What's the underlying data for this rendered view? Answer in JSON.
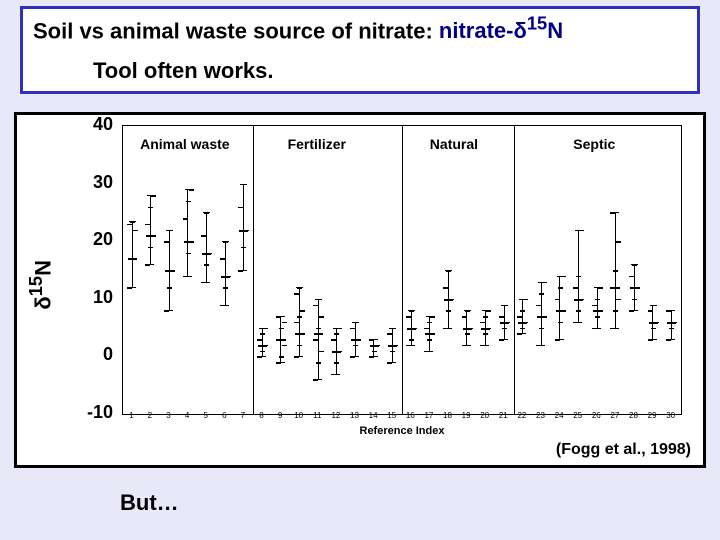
{
  "title": {
    "prefix": "Soil vs animal waste source of nitrate:  ",
    "highlight": "nitrate-δ15N",
    "line2": "Tool often works."
  },
  "chart": {
    "y_axis_label": "δ15N",
    "x_axis_label": "Reference Index",
    "citation": "(Fogg et al., 1998)",
    "ylim": [
      -10,
      40
    ],
    "yticks": [
      -10,
      0,
      10,
      20,
      30,
      40
    ],
    "xlim": [
      0.5,
      30.5
    ],
    "panels": [
      {
        "label": "Animal waste",
        "xstart": 0.5,
        "xend": 7.5
      },
      {
        "label": "Fertilizer",
        "xstart": 7.5,
        "xend": 15.5
      },
      {
        "label": "Natural",
        "xstart": 15.5,
        "xend": 21.5
      },
      {
        "label": "Septic",
        "xstart": 21.5,
        "xend": 30.5
      }
    ],
    "background_color": "#ffffff",
    "border_color": "#000000",
    "tick_fontsize": 18,
    "label_fontsize": 22,
    "series": [
      {
        "ref": 1,
        "mean": 17,
        "points": [
          12,
          17,
          22,
          23,
          23.5
        ],
        "lo": 12,
        "hi": 23.5
      },
      {
        "ref": 2,
        "mean": 21,
        "points": [
          16,
          19,
          21,
          23,
          26,
          28
        ],
        "lo": 16,
        "hi": 28
      },
      {
        "ref": 3,
        "mean": 15,
        "points": [
          8,
          12,
          15,
          20,
          22
        ],
        "lo": 8,
        "hi": 22
      },
      {
        "ref": 4,
        "mean": 20,
        "points": [
          14,
          18,
          20,
          24,
          27,
          29
        ],
        "lo": 14,
        "hi": 29
      },
      {
        "ref": 5,
        "mean": 18,
        "points": [
          13,
          16,
          18,
          21,
          25
        ],
        "lo": 13,
        "hi": 25
      },
      {
        "ref": 6,
        "mean": 14,
        "points": [
          9,
          12,
          14,
          17,
          20
        ],
        "lo": 9,
        "hi": 20
      },
      {
        "ref": 7,
        "mean": 22,
        "points": [
          15,
          19,
          22,
          26,
          30
        ],
        "lo": 15,
        "hi": 30
      },
      {
        "ref": 8,
        "mean": 2,
        "points": [
          0,
          1,
          2,
          3,
          4,
          5
        ],
        "lo": 0,
        "hi": 5
      },
      {
        "ref": 9,
        "mean": 3,
        "points": [
          -1,
          0,
          2,
          3,
          5,
          6,
          7
        ],
        "lo": -1,
        "hi": 7
      },
      {
        "ref": 10,
        "mean": 4,
        "points": [
          0,
          2,
          4,
          6,
          7,
          8,
          11,
          12
        ],
        "lo": 0,
        "hi": 12
      },
      {
        "ref": 11,
        "mean": 4,
        "points": [
          -4,
          -1,
          1,
          3,
          5,
          7,
          9,
          10
        ],
        "lo": -4,
        "hi": 10
      },
      {
        "ref": 12,
        "mean": 1,
        "points": [
          -3,
          -1,
          1,
          3,
          4,
          5
        ],
        "lo": -3,
        "hi": 5
      },
      {
        "ref": 13,
        "mean": 3,
        "points": [
          0,
          2,
          3,
          5,
          6
        ],
        "lo": 0,
        "hi": 6
      },
      {
        "ref": 14,
        "mean": 2,
        "points": [
          0,
          1,
          2,
          3
        ],
        "lo": 0,
        "hi": 3
      },
      {
        "ref": 15,
        "mean": 2,
        "points": [
          -1,
          1,
          2,
          4,
          5
        ],
        "lo": -1,
        "hi": 5
      },
      {
        "ref": 16,
        "mean": 5,
        "points": [
          2,
          3,
          5,
          7,
          8
        ],
        "lo": 2,
        "hi": 8
      },
      {
        "ref": 17,
        "mean": 4,
        "points": [
          1,
          3,
          4,
          5,
          6,
          7
        ],
        "lo": 1,
        "hi": 7
      },
      {
        "ref": 18,
        "mean": 10,
        "points": [
          5,
          8,
          10,
          12,
          15
        ],
        "lo": 5,
        "hi": 15
      },
      {
        "ref": 19,
        "mean": 5,
        "points": [
          2,
          4,
          5,
          7,
          8
        ],
        "lo": 2,
        "hi": 8
      },
      {
        "ref": 20,
        "mean": 5,
        "points": [
          2,
          4,
          5,
          6,
          7,
          8
        ],
        "lo": 2,
        "hi": 8
      },
      {
        "ref": 21,
        "mean": 6,
        "points": [
          3,
          5,
          6,
          7,
          9
        ],
        "lo": 3,
        "hi": 9
      },
      {
        "ref": 22,
        "mean": 6,
        "points": [
          4,
          5,
          6,
          7,
          8,
          10
        ],
        "lo": 4,
        "hi": 10
      },
      {
        "ref": 23,
        "mean": 7,
        "points": [
          2,
          5,
          7,
          9,
          11,
          13
        ],
        "lo": 2,
        "hi": 13
      },
      {
        "ref": 24,
        "mean": 8,
        "points": [
          3,
          6,
          8,
          10,
          12,
          14
        ],
        "lo": 3,
        "hi": 14
      },
      {
        "ref": 25,
        "mean": 10,
        "points": [
          6,
          8,
          10,
          12,
          14,
          22
        ],
        "lo": 6,
        "hi": 22
      },
      {
        "ref": 26,
        "mean": 8,
        "points": [
          5,
          7,
          8,
          9,
          10,
          12
        ],
        "lo": 5,
        "hi": 12
      },
      {
        "ref": 27,
        "mean": 12,
        "points": [
          5,
          8,
          10,
          12,
          15,
          20,
          25
        ],
        "lo": 5,
        "hi": 25
      },
      {
        "ref": 28,
        "mean": 12,
        "points": [
          8,
          10,
          12,
          14,
          16
        ],
        "lo": 8,
        "hi": 16
      },
      {
        "ref": 29,
        "mean": 6,
        "points": [
          3,
          5,
          6,
          8,
          9
        ],
        "lo": 3,
        "hi": 9
      },
      {
        "ref": 30,
        "mean": 6,
        "points": [
          3,
          5,
          6,
          8
        ],
        "lo": 3,
        "hi": 8
      }
    ]
  },
  "footer": {
    "but": "But…"
  }
}
